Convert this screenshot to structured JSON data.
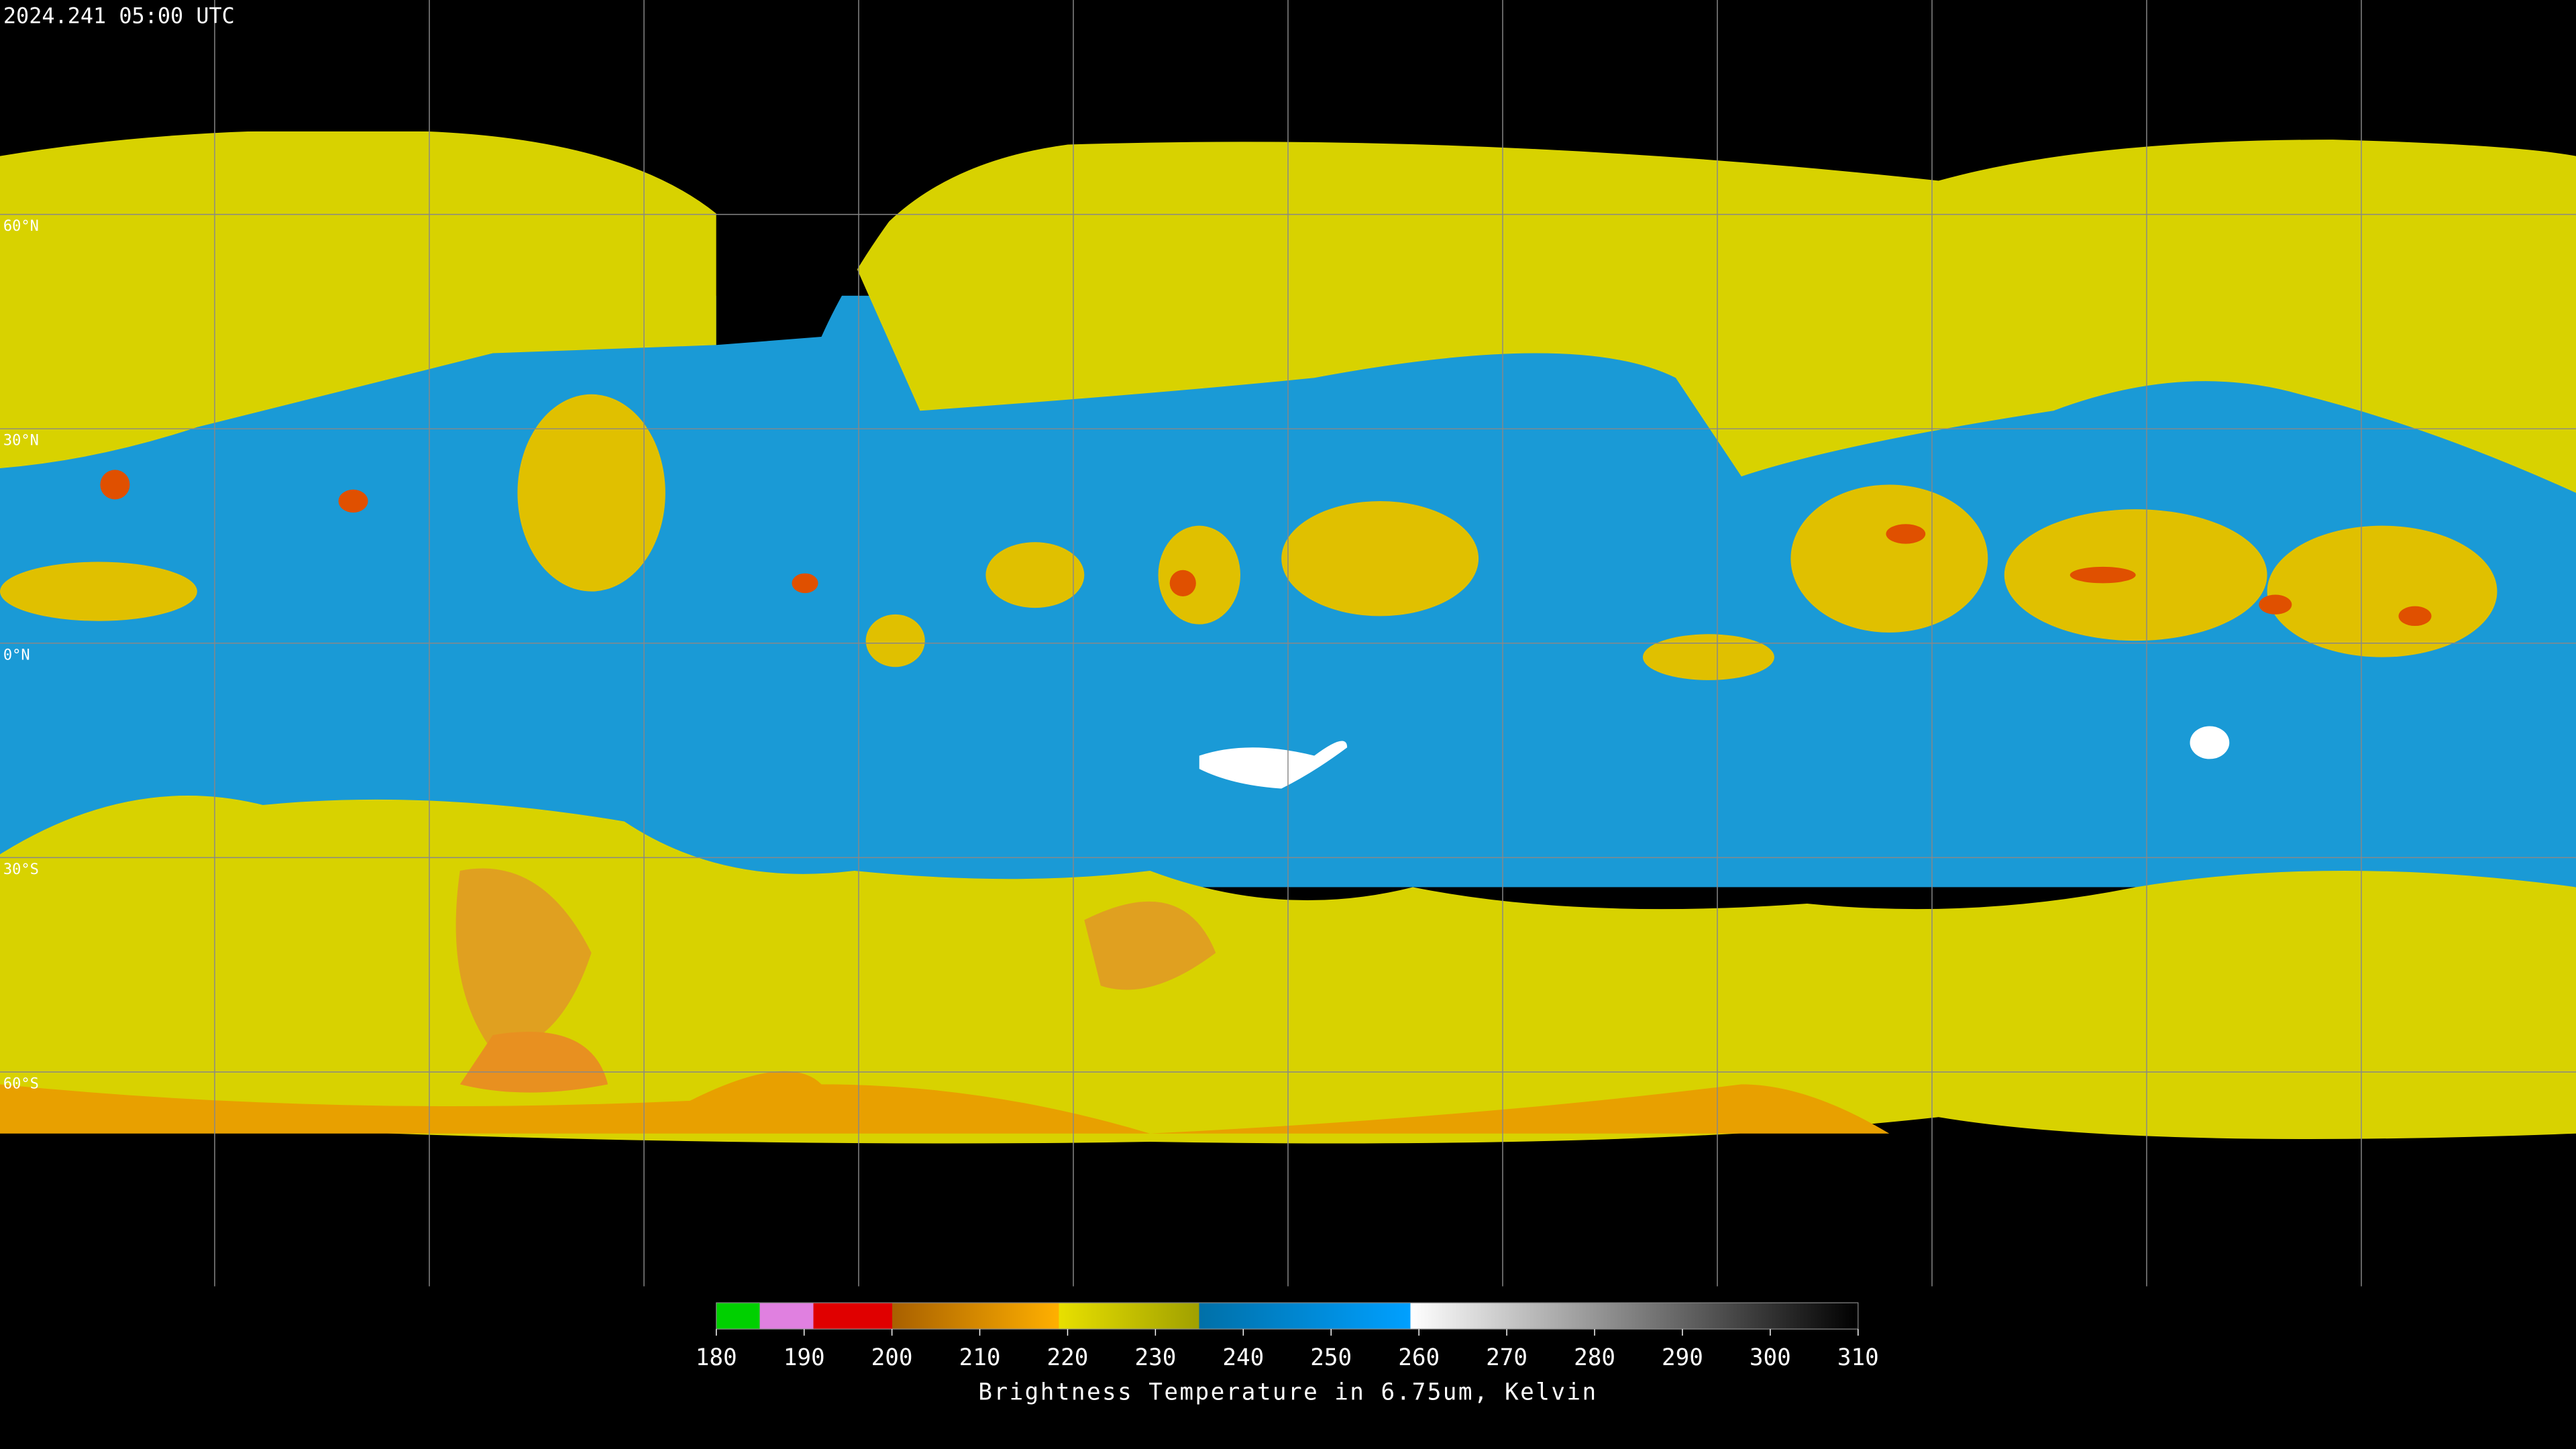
{
  "header": {
    "timestamp": "2024.241 05:00 UTC"
  },
  "latitude_labels": [
    "60°N",
    "30°N",
    "0°N",
    "30°S",
    "60°S"
  ],
  "colorbar": {
    "ticks": [
      180,
      190,
      200,
      210,
      220,
      230,
      240,
      250,
      260,
      270,
      280,
      290,
      300,
      310
    ],
    "label": "Brightness Temperature in 6.75um, Kelvin"
  }
}
